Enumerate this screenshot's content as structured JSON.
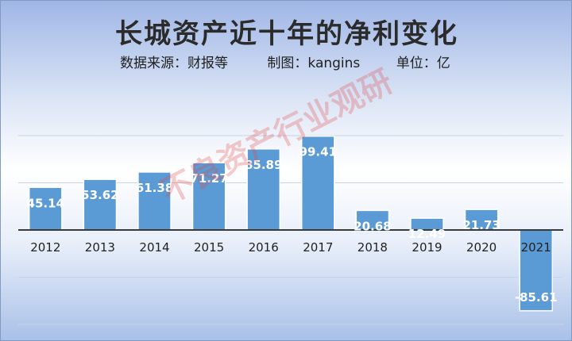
{
  "chart_data": {
    "type": "bar",
    "title": "长城资产近十年的净利变化",
    "subtitle": {
      "source": "数据来源：财报等",
      "maker": "制图：kangins",
      "unit": "单位：亿"
    },
    "categories": [
      "2012",
      "2013",
      "2014",
      "2015",
      "2016",
      "2017",
      "2018",
      "2019",
      "2020",
      "2021"
    ],
    "values": [
      45.14,
      53.62,
      61.38,
      71.27,
      85.89,
      99.41,
      20.68,
      12.49,
      21.73,
      -85.61
    ],
    "value_labels": [
      "45.14",
      "53.62",
      "61.38",
      "71.27",
      "85.89",
      "99.41",
      "20.68",
      "12.49",
      "21.73",
      "-85.61"
    ],
    "ylim": [
      -100,
      100
    ],
    "grid": true,
    "bar_color": "#5b9bd5",
    "axis_color": "#3a3a3a",
    "watermark": "不良资产行业观研"
  }
}
